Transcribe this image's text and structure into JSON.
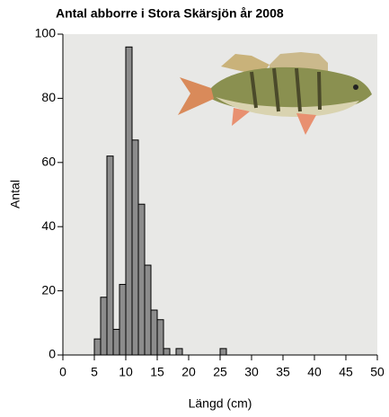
{
  "chart_data": {
    "type": "histogram",
    "title": "Antal abborre i Stora Skärsjön år 2008",
    "x_label": "Längd (cm)",
    "y_label": "Antal",
    "bins": [
      5,
      6,
      7,
      8,
      9,
      10,
      11,
      12,
      13,
      14,
      15,
      16,
      17,
      18,
      19,
      20,
      21,
      22,
      23,
      24,
      25,
      26
    ],
    "values": [
      5,
      18,
      62,
      8,
      22,
      96,
      67,
      47,
      28,
      14,
      11,
      2,
      0,
      2,
      0,
      0,
      0,
      0,
      0,
      0,
      2
    ],
    "color": "#8c8c8c",
    "xlim": [
      0,
      50
    ],
    "xticks": [
      0,
      5,
      10,
      15,
      20,
      25,
      30,
      35,
      40,
      45,
      50
    ],
    "ylim": [
      0,
      100
    ],
    "yticks": [
      0,
      20,
      40,
      60,
      80,
      100
    ],
    "grid": false
  }
}
